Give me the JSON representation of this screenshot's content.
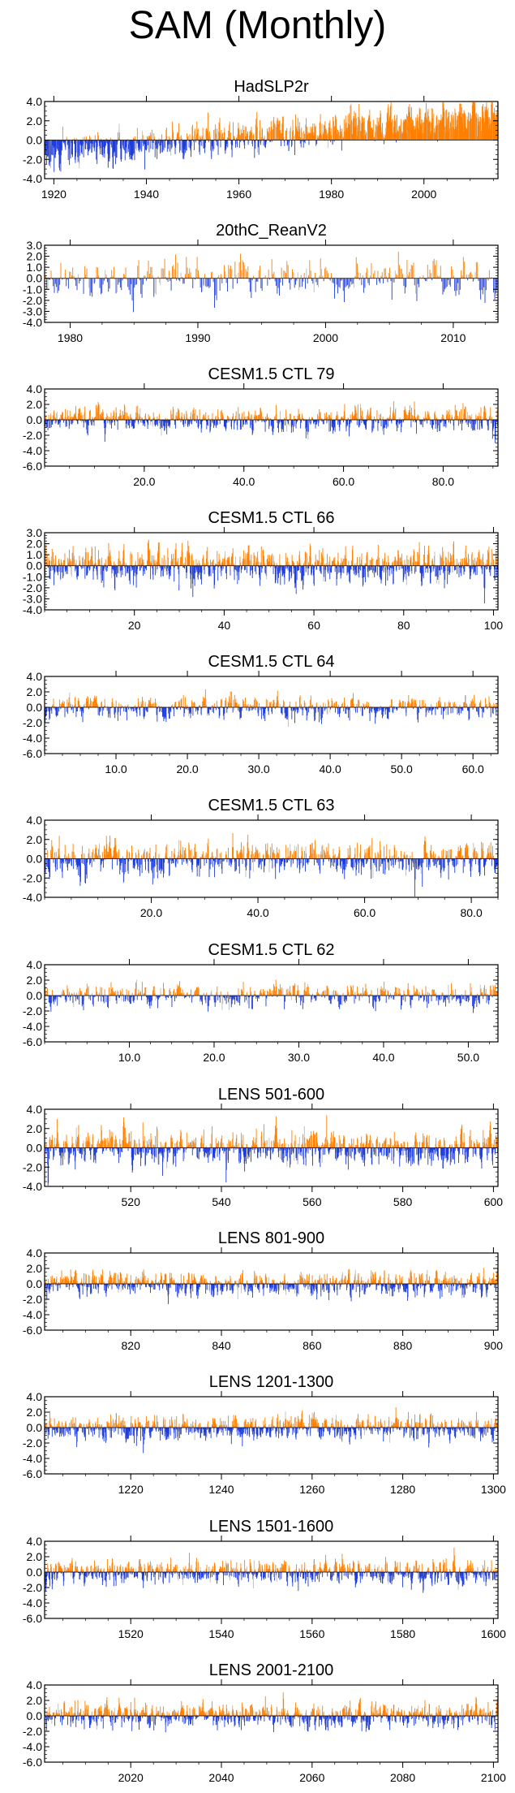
{
  "title": "SAM (Monthly)",
  "colors": {
    "positive": "#ff8000",
    "negative": "#1f3cdc",
    "axis": "#000000",
    "gray": "#bbbbbb"
  },
  "chart_data": [
    {
      "type": "bar",
      "title": "HadSLP2r",
      "x_range": [
        1918,
        2016
      ],
      "ylim": [
        -4.0,
        4.0
      ],
      "y_ticks": [
        4.0,
        2.0,
        0.0,
        -2.0,
        -4.0
      ],
      "y_tick_labels": [
        "4.0",
        "2.0",
        "0.0",
        "-2.0",
        "-4.0"
      ],
      "x_ticks": [
        1920,
        1940,
        1960,
        1980,
        2000
      ],
      "x_tick_labels": [
        "1920",
        "1940",
        "1960",
        "1980",
        "2000"
      ],
      "n": 1150,
      "amplitude": 1.0,
      "trend": [
        -1.0,
        1.8
      ],
      "seed": 11
    },
    {
      "type": "bar",
      "title": "20thC_ReanV2",
      "x_range": [
        1978,
        2013.5
      ],
      "ylim": [
        -4.0,
        3.0
      ],
      "y_ticks": [
        3.0,
        2.0,
        1.0,
        0.0,
        -1.0,
        -2.0,
        -3.0,
        -4.0
      ],
      "y_tick_labels": [
        "3.0",
        "2.0",
        "1.0",
        "0.0",
        "-1.0",
        "-2.0",
        "-3.0",
        "-4.0"
      ],
      "x_ticks": [
        1980,
        1990,
        2000,
        2010
      ],
      "x_tick_labels": [
        "1980",
        "1990",
        "2000",
        "2010"
      ],
      "n": 420,
      "amplitude": 1.0,
      "trend": [
        0,
        0
      ],
      "seed": 23
    },
    {
      "type": "bar",
      "title": "CESM1.5 CTL 79",
      "x_range": [
        0,
        91
      ],
      "ylim": [
        -6.0,
        4.0
      ],
      "y_ticks": [
        4.0,
        2.0,
        0.0,
        -2.0,
        -4.0,
        -6.0
      ],
      "y_tick_labels": [
        "4.0",
        "2.0",
        "0.0",
        "-2.0",
        "-4.0",
        "-6.0"
      ],
      "x_ticks": [
        20,
        40,
        60,
        80
      ],
      "x_tick_labels": [
        "20.0",
        "40.0",
        "60.0",
        "80.0"
      ],
      "n": 1092,
      "amplitude": 0.9,
      "trend": [
        0,
        0
      ],
      "seed": 37
    },
    {
      "type": "bar",
      "title": "CESM1.5 CTL 66",
      "x_range": [
        0,
        101
      ],
      "ylim": [
        -4.0,
        3.0
      ],
      "y_ticks": [
        3.0,
        2.0,
        1.0,
        0.0,
        -1.0,
        -2.0,
        -3.0,
        -4.0
      ],
      "y_tick_labels": [
        "3.0",
        "2.0",
        "1.0",
        "0.0",
        "-1.0",
        "-2.0",
        "-3.0",
        "-4.0"
      ],
      "x_ticks": [
        20,
        40,
        60,
        80,
        100
      ],
      "x_tick_labels": [
        "20",
        "40",
        "60",
        "80",
        "100"
      ],
      "n": 1212,
      "amplitude": 0.9,
      "trend": [
        0,
        0
      ],
      "seed": 41
    },
    {
      "type": "bar",
      "title": "CESM1.5 CTL 64",
      "x_range": [
        0,
        63.5
      ],
      "ylim": [
        -6.0,
        4.0
      ],
      "y_ticks": [
        4.0,
        2.0,
        0.0,
        -2.0,
        -4.0,
        -6.0
      ],
      "y_tick_labels": [
        "4.0",
        "2.0",
        "0.0",
        "-2.0",
        "-4.0",
        "-6.0"
      ],
      "x_ticks": [
        10,
        20,
        30,
        40,
        50,
        60
      ],
      "x_tick_labels": [
        "10.0",
        "20.0",
        "30.0",
        "40.0",
        "50.0",
        "60.0"
      ],
      "n": 762,
      "amplitude": 0.9,
      "trend": [
        0,
        0
      ],
      "seed": 53
    },
    {
      "type": "bar",
      "title": "CESM1.5 CTL 63",
      "x_range": [
        0,
        85
      ],
      "ylim": [
        -4.0,
        4.0
      ],
      "y_ticks": [
        4.0,
        2.0,
        0.0,
        -2.0,
        -4.0
      ],
      "y_tick_labels": [
        "4.0",
        "2.0",
        "0.0",
        "-2.0",
        "-4.0"
      ],
      "x_ticks": [
        20,
        40,
        60,
        80
      ],
      "x_tick_labels": [
        "20.0",
        "40.0",
        "60.0",
        "80.0"
      ],
      "n": 1020,
      "amplitude": 1.0,
      "trend": [
        0,
        0
      ],
      "seed": 67
    },
    {
      "type": "bar",
      "title": "CESM1.5 CTL 62",
      "x_range": [
        0,
        53.5
      ],
      "ylim": [
        -6.0,
        4.0
      ],
      "y_ticks": [
        4.0,
        2.0,
        0.0,
        -2.0,
        -4.0,
        -6.0
      ],
      "y_tick_labels": [
        "4.0",
        "2.0",
        "0.0",
        "-2.0",
        "-4.0",
        "-6.0"
      ],
      "x_ticks": [
        10,
        20,
        30,
        40,
        50
      ],
      "x_tick_labels": [
        "10.0",
        "20.0",
        "30.0",
        "40.0",
        "50.0"
      ],
      "n": 642,
      "amplitude": 0.9,
      "trend": [
        0,
        0
      ],
      "seed": 71
    },
    {
      "type": "bar",
      "title": "LENS 501-600",
      "x_range": [
        501,
        601
      ],
      "ylim": [
        -4.0,
        4.0
      ],
      "y_ticks": [
        4.0,
        2.0,
        0.0,
        -2.0,
        -4.0
      ],
      "y_tick_labels": [
        "4.0",
        "2.0",
        "0.0",
        "-2.0",
        "-4.0"
      ],
      "x_ticks": [
        520,
        540,
        560,
        580,
        600
      ],
      "x_tick_labels": [
        "520",
        "540",
        "560",
        "580",
        "600"
      ],
      "n": 1200,
      "amplitude": 1.0,
      "trend": [
        0,
        0
      ],
      "seed": 83
    },
    {
      "type": "bar",
      "title": "LENS 801-900",
      "x_range": [
        801,
        901
      ],
      "ylim": [
        -6.0,
        4.0
      ],
      "y_ticks": [
        4.0,
        2.0,
        0.0,
        -2.0,
        -4.0,
        -6.0
      ],
      "y_tick_labels": [
        "4.0",
        "2.0",
        "0.0",
        "-2.0",
        "-4.0",
        "-6.0"
      ],
      "x_ticks": [
        820,
        840,
        860,
        880,
        900
      ],
      "x_tick_labels": [
        "820",
        "840",
        "860",
        "880",
        "900"
      ],
      "n": 1200,
      "amplitude": 0.9,
      "trend": [
        0,
        0
      ],
      "seed": 97
    },
    {
      "type": "bar",
      "title": "LENS 1201-1300",
      "x_range": [
        1201,
        1301
      ],
      "ylim": [
        -6.0,
        4.0
      ],
      "y_ticks": [
        4.0,
        2.0,
        0.0,
        -2.0,
        -4.0,
        -6.0
      ],
      "y_tick_labels": [
        "4.0",
        "2.0",
        "0.0",
        "-2.0",
        "-4.0",
        "-6.0"
      ],
      "x_ticks": [
        1220,
        1240,
        1260,
        1280,
        1300
      ],
      "x_tick_labels": [
        "1220",
        "1240",
        "1260",
        "1280",
        "1300"
      ],
      "n": 1200,
      "amplitude": 0.9,
      "trend": [
        0,
        0
      ],
      "seed": 101
    },
    {
      "type": "bar",
      "title": "LENS 1501-1600",
      "x_range": [
        1501,
        1601
      ],
      "ylim": [
        -6.0,
        4.0
      ],
      "y_ticks": [
        4.0,
        2.0,
        0.0,
        -2.0,
        -4.0,
        -6.0
      ],
      "y_tick_labels": [
        "4.0",
        "2.0",
        "0.0",
        "-2.0",
        "-4.0",
        "-6.0"
      ],
      "x_ticks": [
        1520,
        1540,
        1560,
        1580,
        1600
      ],
      "x_tick_labels": [
        "1520",
        "1540",
        "1560",
        "1580",
        "1600"
      ],
      "n": 1200,
      "amplitude": 0.9,
      "trend": [
        0,
        0
      ],
      "seed": 113
    },
    {
      "type": "bar",
      "title": "LENS 2001-2100",
      "x_range": [
        2001,
        2101
      ],
      "ylim": [
        -6.0,
        4.0
      ],
      "y_ticks": [
        4.0,
        2.0,
        0.0,
        -2.0,
        -4.0,
        -6.0
      ],
      "y_tick_labels": [
        "4.0",
        "2.0",
        "0.0",
        "-2.0",
        "-4.0",
        "-6.0"
      ],
      "x_ticks": [
        2020,
        2040,
        2060,
        2080,
        2100
      ],
      "x_tick_labels": [
        "2020",
        "2040",
        "2060",
        "2080",
        "2100"
      ],
      "n": 1200,
      "amplitude": 0.9,
      "trend": [
        0,
        0
      ],
      "seed": 127
    }
  ]
}
